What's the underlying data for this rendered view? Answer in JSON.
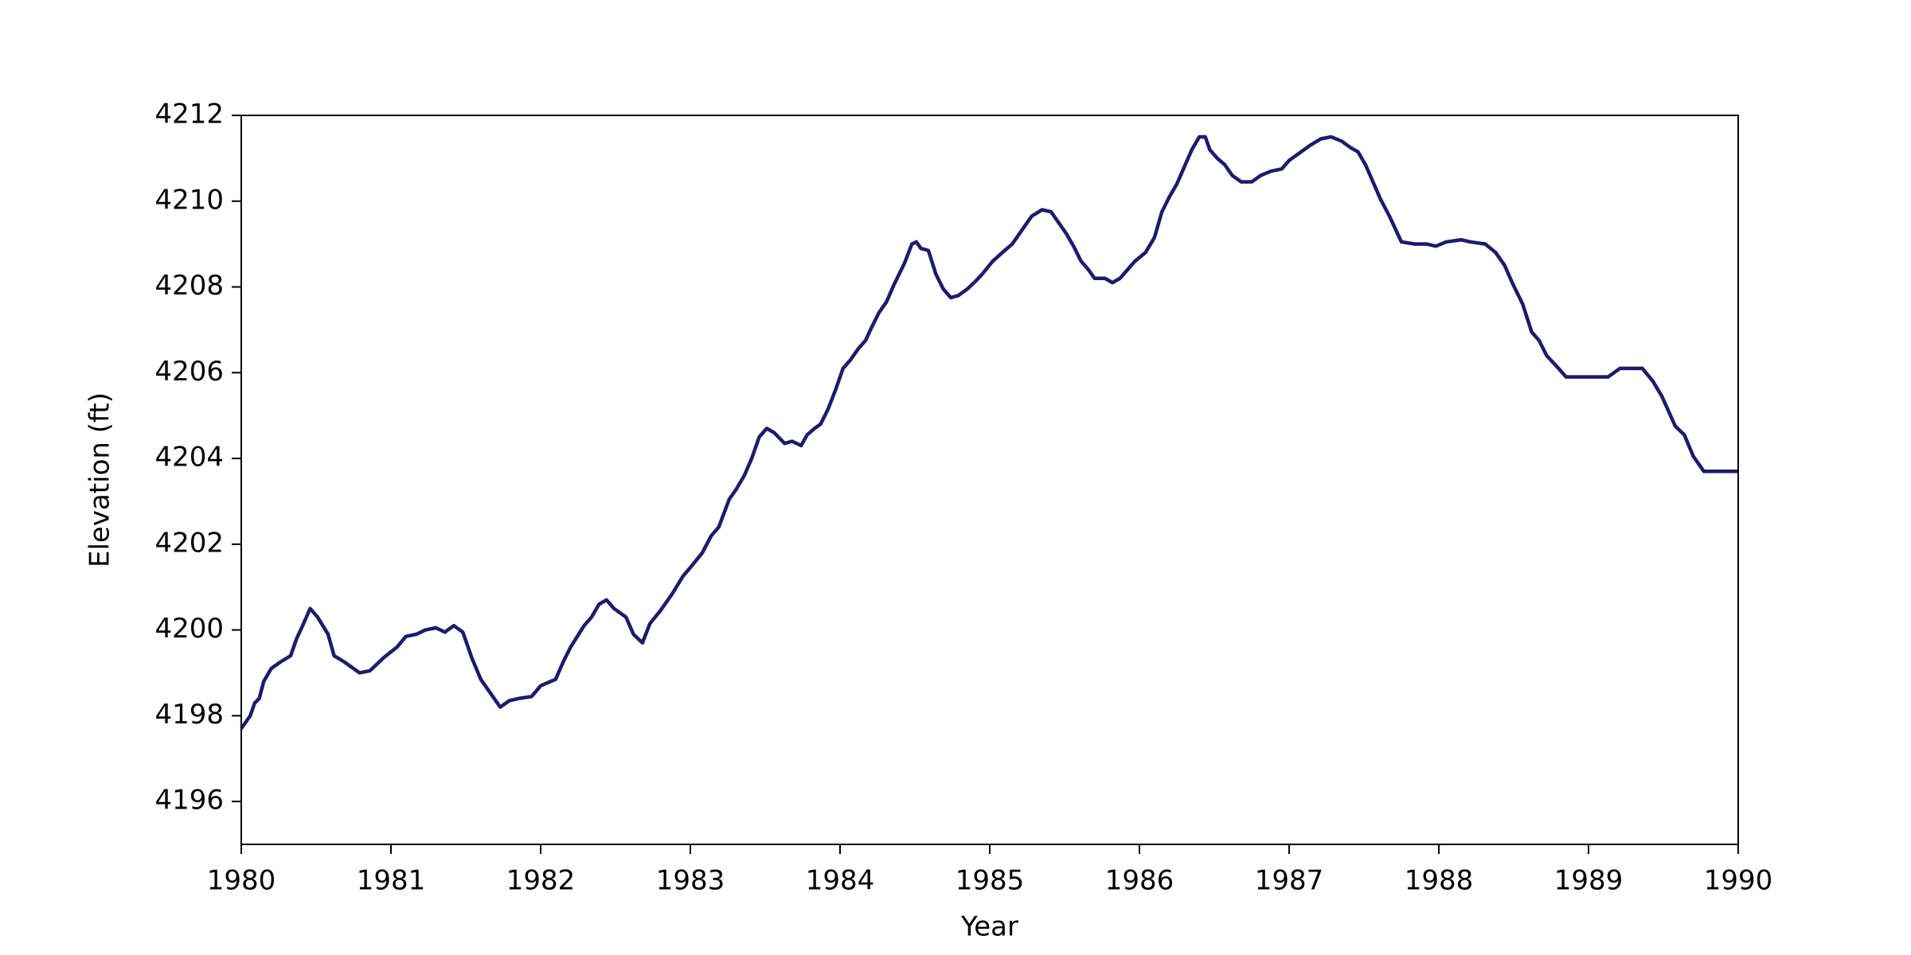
{
  "chart_data": {
    "type": "line",
    "xlabel": "Year",
    "ylabel": "Elevation (ft)",
    "color": "#1c1c6b",
    "xlim": [
      1980,
      1990
    ],
    "xticks": [
      1980,
      1981,
      1982,
      1983,
      1984,
      1985,
      1986,
      1987,
      1988,
      1989,
      1990
    ],
    "ylim": [
      4195,
      4212
    ],
    "yticks": [
      4196,
      4198,
      4200,
      4202,
      4204,
      4206,
      4208,
      4210,
      4212
    ],
    "x": [
      1980.0,
      1980.06,
      1980.09,
      1980.12,
      1980.15,
      1980.2,
      1980.26,
      1980.33,
      1980.37,
      1980.41,
      1980.46,
      1980.51,
      1980.58,
      1980.62,
      1980.69,
      1980.79,
      1980.86,
      1980.95,
      1981.04,
      1981.1,
      1981.17,
      1981.23,
      1981.3,
      1981.36,
      1981.42,
      1981.48,
      1981.54,
      1981.6,
      1981.67,
      1981.73,
      1981.79,
      1981.85,
      1981.94,
      1982.0,
      1982.1,
      1982.15,
      1982.2,
      1982.29,
      1982.34,
      1982.39,
      1982.44,
      1982.49,
      1982.57,
      1982.62,
      1982.68,
      1982.73,
      1982.8,
      1982.88,
      1982.95,
      1983.01,
      1983.08,
      1983.14,
      1983.19,
      1983.26,
      1983.31,
      1983.36,
      1983.41,
      1983.46,
      1983.51,
      1983.56,
      1983.63,
      1983.68,
      1983.74,
      1983.78,
      1983.83,
      1983.87,
      1983.92,
      1983.97,
      1984.02,
      1984.07,
      1984.12,
      1984.17,
      1984.21,
      1984.26,
      1984.31,
      1984.36,
      1984.43,
      1984.48,
      1984.51,
      1984.54,
      1984.59,
      1984.64,
      1984.69,
      1984.74,
      1984.79,
      1984.85,
      1984.91,
      1984.95,
      1985.02,
      1985.1,
      1985.15,
      1985.22,
      1985.28,
      1985.35,
      1985.41,
      1985.46,
      1985.51,
      1985.56,
      1985.61,
      1985.66,
      1985.7,
      1985.77,
      1985.82,
      1985.87,
      1985.92,
      1985.97,
      1986.04,
      1986.1,
      1986.15,
      1986.2,
      1986.25,
      1986.3,
      1986.35,
      1986.4,
      1986.44,
      1986.47,
      1986.52,
      1986.57,
      1986.62,
      1986.68,
      1986.75,
      1986.81,
      1986.88,
      1986.95,
      1987.0,
      1987.08,
      1987.14,
      1987.21,
      1987.28,
      1987.35,
      1987.41,
      1987.46,
      1987.51,
      1987.56,
      1987.61,
      1987.67,
      1987.75,
      1987.84,
      1987.92,
      1987.98,
      1988.05,
      1988.15,
      1988.21,
      1988.31,
      1988.38,
      1988.44,
      1988.49,
      1988.56,
      1988.62,
      1988.67,
      1988.72,
      1988.8,
      1988.85,
      1989.0,
      1989.13,
      1989.21,
      1989.36,
      1989.43,
      1989.49,
      1989.58,
      1989.64,
      1989.7,
      1989.77,
      1989.84,
      1990.0
    ],
    "values": [
      4197.7,
      4198.0,
      4198.3,
      4198.4,
      4198.8,
      4199.1,
      4199.25,
      4199.4,
      4199.8,
      4200.1,
      4200.5,
      4200.3,
      4199.9,
      4199.4,
      4199.25,
      4199.0,
      4199.05,
      4199.35,
      4199.6,
      4199.85,
      4199.9,
      4200.0,
      4200.05,
      4199.95,
      4200.1,
      4199.95,
      4199.35,
      4198.85,
      4198.5,
      4198.2,
      4198.35,
      4198.4,
      4198.45,
      4198.7,
      4198.85,
      4199.25,
      4199.6,
      4200.1,
      4200.3,
      4200.6,
      4200.7,
      4200.5,
      4200.3,
      4199.9,
      4199.7,
      4200.15,
      4200.45,
      4200.85,
      4201.25,
      4201.5,
      4201.8,
      4202.2,
      4202.4,
      4203.05,
      4203.3,
      4203.6,
      4204.0,
      4204.5,
      4204.7,
      4204.6,
      4204.35,
      4204.4,
      4204.3,
      4204.55,
      4204.7,
      4204.8,
      4205.15,
      4205.6,
      4206.1,
      4206.3,
      4206.55,
      4206.75,
      4207.05,
      4207.4,
      4207.65,
      4208.05,
      4208.55,
      4209.0,
      4209.05,
      4208.9,
      4208.85,
      4208.3,
      4207.95,
      4207.75,
      4207.8,
      4207.95,
      4208.15,
      4208.3,
      4208.6,
      4208.85,
      4209.0,
      4209.35,
      4209.65,
      4209.8,
      4209.75,
      4209.5,
      4209.25,
      4208.95,
      4208.6,
      4208.4,
      4208.2,
      4208.2,
      4208.1,
      4208.2,
      4208.4,
      4208.6,
      4208.8,
      4209.15,
      4209.75,
      4210.1,
      4210.4,
      4210.8,
      4211.2,
      4211.5,
      4211.5,
      4211.2,
      4211.0,
      4210.85,
      4210.6,
      4210.45,
      4210.45,
      4210.6,
      4210.7,
      4210.75,
      4210.95,
      4211.15,
      4211.3,
      4211.45,
      4211.5,
      4211.4,
      4211.25,
      4211.15,
      4210.85,
      4210.45,
      4210.05,
      4209.65,
      4209.05,
      4209.0,
      4209.0,
      4208.95,
      4209.05,
      4209.1,
      4209.05,
      4209.0,
      4208.8,
      4208.5,
      4208.1,
      4207.6,
      4206.95,
      4206.75,
      4206.4,
      4206.1,
      4205.9,
      4205.9,
      4205.9,
      4206.1,
      4206.1,
      4205.8,
      4205.45,
      4204.75,
      4204.55,
      4204.05,
      4203.7,
      4203.7,
      4203.7
    ]
  }
}
